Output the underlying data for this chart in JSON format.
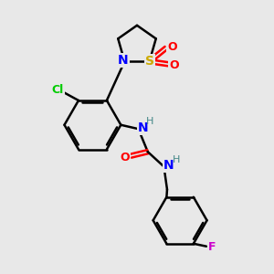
{
  "background_color": "#e8e8e8",
  "bond_color": "#000000",
  "atom_colors": {
    "N": "#0000ff",
    "O": "#ff0000",
    "S": "#ccaa00",
    "Cl": "#00cc00",
    "F": "#cc00cc",
    "H_label": "#448888",
    "C": "#000000"
  },
  "figsize": [
    3.0,
    3.0
  ],
  "dpi": 100
}
